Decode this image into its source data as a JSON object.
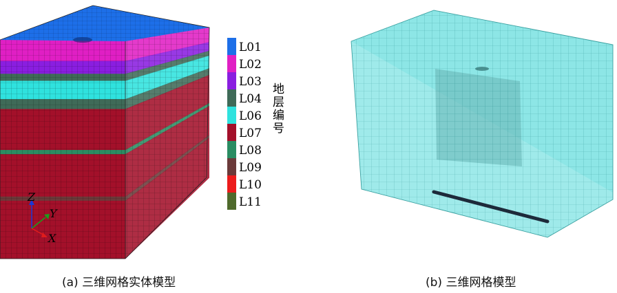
{
  "panel_a": {
    "caption": "(a)  三维网格实体模型",
    "legend_title": "地层编号",
    "layers": [
      {
        "label": "L01",
        "color": "#1d6fe8"
      },
      {
        "label": "L02",
        "color": "#e01fc4"
      },
      {
        "label": "L03",
        "color": "#8a1ee0"
      },
      {
        "label": "L04",
        "color": "#3f6a58"
      },
      {
        "label": "L06",
        "color": "#2fe2de"
      },
      {
        "label": "L07",
        "color": "#a3102a"
      },
      {
        "label": "L08",
        "color": "#2a8c62"
      },
      {
        "label": "L09",
        "color": "#6b3a3a"
      },
      {
        "label": "L10",
        "color": "#ec1c1c"
      },
      {
        "label": "L11",
        "color": "#4f6a2c"
      }
    ],
    "stack_order": [
      "L01",
      "L02",
      "L03",
      "L04",
      "L06",
      "L04",
      "L07",
      "L08",
      "L07",
      "L09",
      "L07"
    ],
    "axes": {
      "z": "Z",
      "y": "Y",
      "x": "X"
    }
  },
  "panel_b": {
    "caption": "(b)  三维网格模型",
    "mesh_color": "#7fe3e3"
  }
}
